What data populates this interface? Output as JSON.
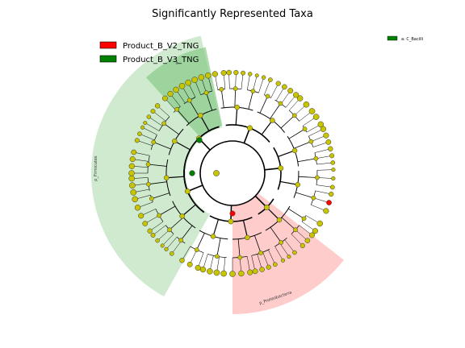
{
  "title": "Significantly Represented Taxa",
  "legend": [
    {
      "label": "Product_B_V2_TNG",
      "color": "#ff0000"
    },
    {
      "label": "Product_B_V3_TNG",
      "color": "#008000"
    }
  ],
  "clade_legend": [
    {
      "label": "a: C_Bacilli",
      "color": "#008000"
    }
  ],
  "clade_labels": {
    "firmicutes": "p_Firmicutes",
    "proteobacteria": "p_Proteobacteria",
    "bacilli": "a"
  },
  "colors": {
    "node_default": "#c8c400",
    "node_v2": "#ff0000",
    "node_v3": "#008000",
    "firmicutes_band": "#a8d8a8",
    "bacilli_band": "#7cc47c",
    "proteobacteria_band": "#ffaaaa"
  }
}
